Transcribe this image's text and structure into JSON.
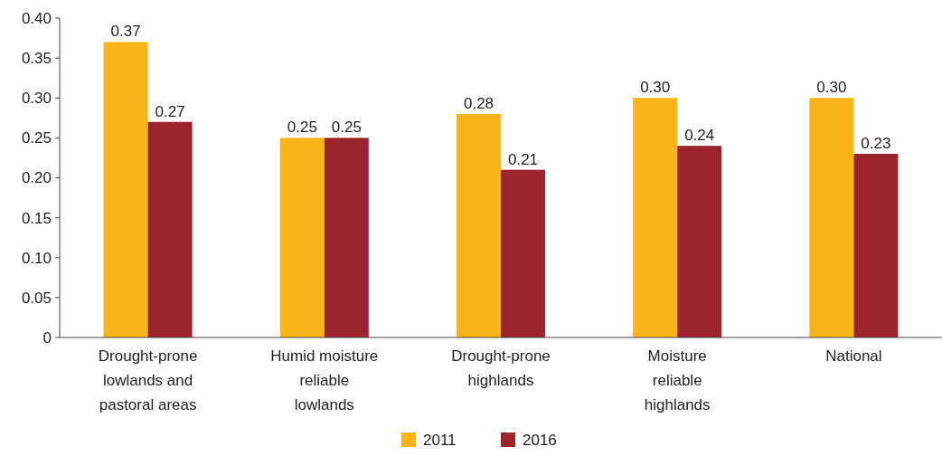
{
  "chart_data": {
    "type": "bar",
    "categories": [
      "Drought-prone lowlands and pastoral areas",
      "Humid moisture reliable lowlands",
      "Drought-prone highlands",
      "Moisture reliable highlands",
      "National"
    ],
    "series": [
      {
        "name": "2011",
        "color": "#f9b418",
        "values": [
          0.37,
          0.25,
          0.28,
          0.3,
          0.3
        ],
        "value_labels": [
          "0.37",
          "0.25",
          "0.28",
          "0.30",
          "0.30"
        ]
      },
      {
        "name": "2016",
        "color": "#9b242d",
        "values": [
          0.27,
          0.25,
          0.21,
          0.24,
          0.23
        ],
        "value_labels": [
          "0.27",
          "0.25",
          "0.21",
          "0.24",
          "0.23"
        ]
      }
    ],
    "ylim": [
      0,
      0.4
    ],
    "yticks": [
      {
        "value": 0,
        "label": "0"
      },
      {
        "value": 0.05,
        "label": "0.05"
      },
      {
        "value": 0.1,
        "label": "0.10"
      },
      {
        "value": 0.15,
        "label": "0.15"
      },
      {
        "value": 0.2,
        "label": "0.20"
      },
      {
        "value": 0.25,
        "label": "0.25"
      },
      {
        "value": 0.3,
        "label": "0.30"
      },
      {
        "value": 0.35,
        "label": "0.35"
      },
      {
        "value": 0.4,
        "label": "0.40"
      }
    ],
    "grid": false,
    "legend": "bottom"
  }
}
